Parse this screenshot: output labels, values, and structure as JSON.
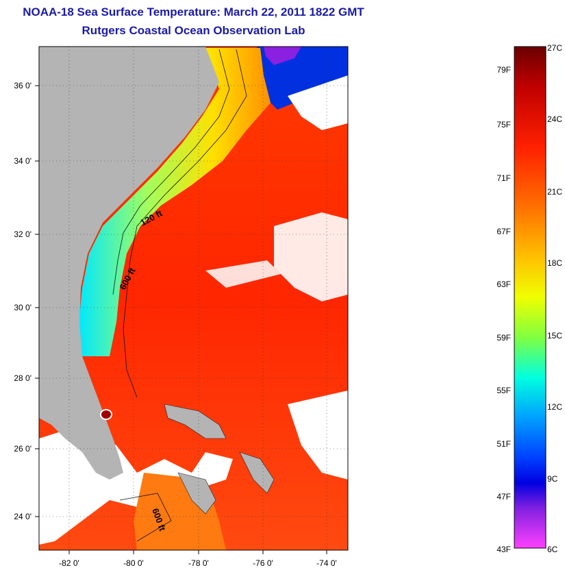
{
  "header": {
    "title": "NOAA-18 Sea Surface Temperature:  March 22, 2011 1822 GMT",
    "subtitle": "Rutgers Coastal Ocean Observation Lab"
  },
  "map": {
    "lon_ticks": [
      "-82 0'",
      "-80 0'",
      "-78 0'",
      "-76 0'",
      "-74 0'"
    ],
    "lat_ticks": [
      "36 0'",
      "34 0'",
      "32 0'",
      "30 0'",
      "28 0'",
      "26 0'",
      "24 0'"
    ],
    "contour_labels": [
      "120 ft",
      "600 ft",
      "600 ft"
    ],
    "colors": {
      "land": "#b4b4b4",
      "gulf_stream": "#ff2a00",
      "shelf_warm": "#ff9a00",
      "shelf_cool": "#f2f000",
      "nearshore_cold": "#00e0ff",
      "cloud": "#ffffff"
    }
  },
  "colorbar": {
    "fahrenheit_labels": [
      "79F",
      "75F",
      "71F",
      "67F",
      "63F",
      "59F",
      "55F",
      "51F",
      "47F",
      "43F"
    ],
    "celsius_labels": [
      "27C",
      "24C",
      "21C",
      "18C",
      "15C",
      "12C",
      "9C",
      "6C"
    ]
  }
}
